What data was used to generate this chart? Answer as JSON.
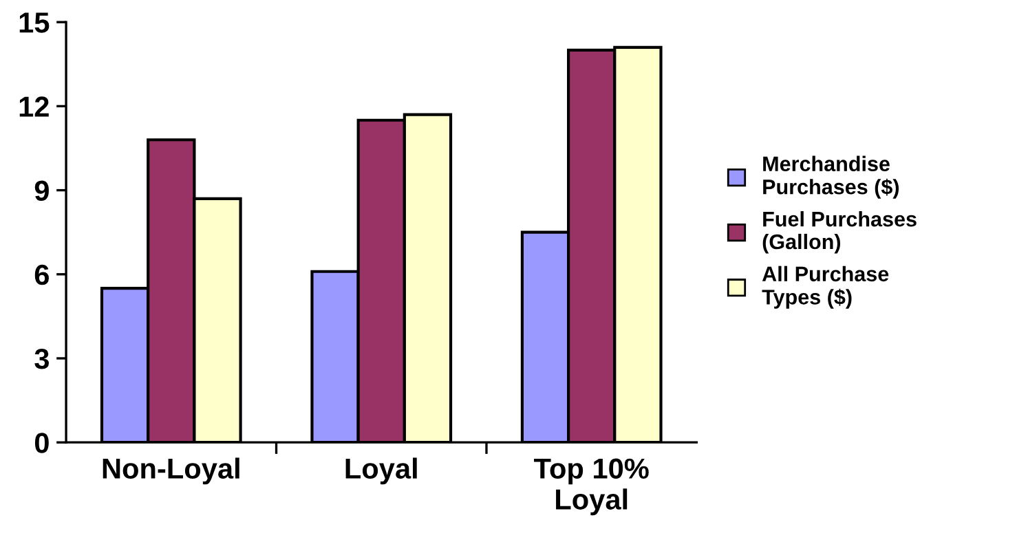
{
  "chart_data": {
    "type": "bar",
    "categories": [
      "Non-Loyal",
      "Loyal",
      "Top 10%\nLoyal"
    ],
    "series": [
      {
        "name": "Merchandise\nPurchases ($)",
        "color": "#9999ff",
        "values": [
          5.5,
          6.1,
          7.5
        ]
      },
      {
        "name": "Fuel Purchases\n(Gallon)",
        "color": "#993366",
        "values": [
          10.8,
          11.5,
          14.0
        ]
      },
      {
        "name": "All Purchase\nTypes ($)",
        "color": "#ffffcc",
        "values": [
          8.7,
          11.7,
          14.1
        ]
      }
    ],
    "ylim": [
      0,
      15
    ],
    "yticks": [
      0,
      3,
      6,
      9,
      12,
      15
    ],
    "grid": false,
    "legend": "right"
  }
}
